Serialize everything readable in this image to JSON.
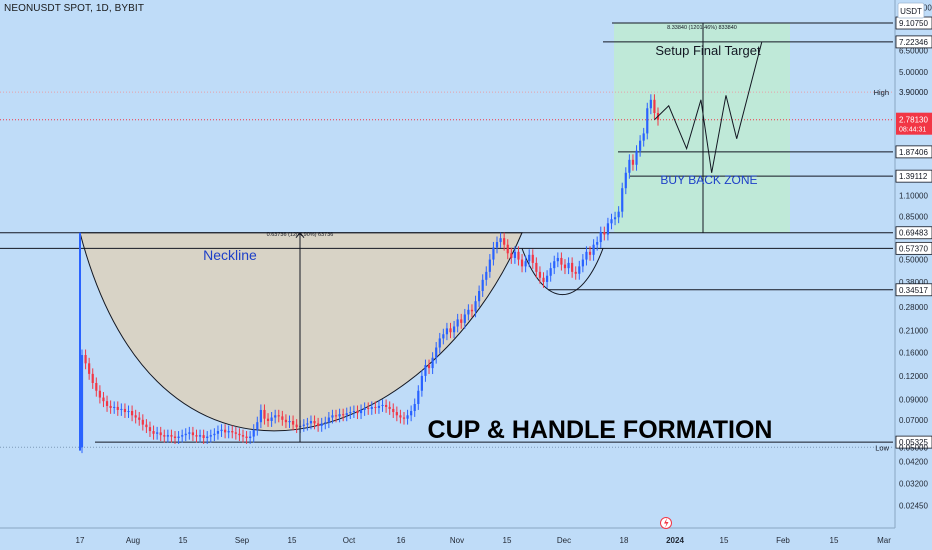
{
  "header": {
    "symbol_title": "NEONUSDT SPOT, 1D, BYBIT",
    "currency": "USDT"
  },
  "colors": {
    "background": "#bfdcf8",
    "up": "#2962ff",
    "down": "#f23645",
    "cup_fill": "#d8d3c6",
    "target_zone": "#bfe9d6",
    "current_price_bg": "#f23645",
    "line": "#131722"
  },
  "chart_data": {
    "type": "candlestick",
    "y_scale": "log",
    "ylim": [
      0.0195,
      11.5
    ],
    "x_axis_labels": [
      "17",
      "Aug",
      "15",
      "Sep",
      "15",
      "Oct",
      "16",
      "Nov",
      "15",
      "Dec",
      "18",
      "2024",
      "15",
      "Feb",
      "15",
      "Mar"
    ],
    "y_ticks": [
      "11.00000",
      "6.50000",
      "5.00000",
      "1.10000",
      "0.85000",
      "0.50000",
      "0.38000",
      "0.28000",
      "0.21000",
      "0.16000",
      "0.12000",
      "0.09000",
      "0.07000",
      "0.04200",
      "0.03200",
      "0.02450"
    ],
    "price_levels": [
      {
        "label": "9.10750",
        "value": 9.1075
      },
      {
        "label": "7.22346",
        "value": 7.22346
      },
      {
        "label": "3.90000",
        "value": 3.9,
        "side_label": "High"
      },
      {
        "label": "1.87406",
        "value": 1.87406
      },
      {
        "label": "1.39112",
        "value": 1.39112
      },
      {
        "label": "0.69483",
        "value": 0.69483
      },
      {
        "label": "0.57370",
        "value": 0.5737
      },
      {
        "label": "0.34517",
        "value": 0.34517
      },
      {
        "label": "0.05325",
        "value": 0.05325
      },
      {
        "label": "0.05000",
        "value": 0.05,
        "side_label": "Low"
      }
    ],
    "current_price": {
      "label": "2.78130",
      "countdown": "08:44:31",
      "value": 2.7813
    },
    "measurements": [
      {
        "text": "0.63736 (1204.90%) 63736"
      },
      {
        "text": "8.33840 (1201.46%) 833840"
      }
    ],
    "annotations": {
      "neckline": "Neckline",
      "target": "Setup Final Target",
      "buy_back": "BUY BACK ZONE",
      "pattern": "CUP & HANDLE FORMATION"
    },
    "candles_close": [
      0.155,
      0.14,
      0.123,
      0.11,
      0.1,
      0.092,
      0.088,
      0.083,
      0.081,
      0.082,
      0.079,
      0.08,
      0.077,
      0.078,
      0.074,
      0.072,
      0.07,
      0.066,
      0.064,
      0.061,
      0.059,
      0.06,
      0.058,
      0.057,
      0.058,
      0.057,
      0.056,
      0.057,
      0.058,
      0.059,
      0.06,
      0.058,
      0.057,
      0.058,
      0.056,
      0.057,
      0.058,
      0.059,
      0.061,
      0.062,
      0.06,
      0.061,
      0.06,
      0.059,
      0.058,
      0.057,
      0.056,
      0.057,
      0.062,
      0.068,
      0.079,
      0.071,
      0.069,
      0.072,
      0.074,
      0.073,
      0.07,
      0.068,
      0.069,
      0.066,
      0.064,
      0.065,
      0.066,
      0.067,
      0.069,
      0.067,
      0.065,
      0.067,
      0.068,
      0.072,
      0.074,
      0.073,
      0.075,
      0.074,
      0.076,
      0.077,
      0.078,
      0.076,
      0.079,
      0.081,
      0.08,
      0.082,
      0.081,
      0.083,
      0.084,
      0.082,
      0.08,
      0.077,
      0.074,
      0.072,
      0.071,
      0.074,
      0.078,
      0.085,
      0.1,
      0.12,
      0.137,
      0.132,
      0.15,
      0.17,
      0.19,
      0.2,
      0.215,
      0.205,
      0.22,
      0.24,
      0.23,
      0.255,
      0.27,
      0.265,
      0.3,
      0.34,
      0.39,
      0.43,
      0.5,
      0.58,
      0.62,
      0.65,
      0.6,
      0.54,
      0.51,
      0.55,
      0.5,
      0.46,
      0.49,
      0.53,
      0.48,
      0.43,
      0.4,
      0.38,
      0.41,
      0.45,
      0.49,
      0.51,
      0.47,
      0.45,
      0.48,
      0.43,
      0.42,
      0.46,
      0.5,
      0.55,
      0.53,
      0.6,
      0.62,
      0.7,
      0.68,
      0.78,
      0.82,
      0.84,
      0.9,
      1.2,
      1.45,
      1.7,
      1.6,
      1.9,
      2.15,
      2.35,
      3.2,
      3.55,
      3.02,
      2.78
    ],
    "projection_path": [
      {
        "i": 160,
        "v": 2.78
      },
      {
        "i": 164,
        "v": 3.3
      },
      {
        "i": 169,
        "v": 1.95
      },
      {
        "i": 173,
        "v": 3.55
      },
      {
        "i": 176,
        "v": 1.45
      },
      {
        "i": 180,
        "v": 3.75
      },
      {
        "i": 183,
        "v": 2.2
      },
      {
        "i": 190,
        "v": 7.2
      }
    ]
  }
}
